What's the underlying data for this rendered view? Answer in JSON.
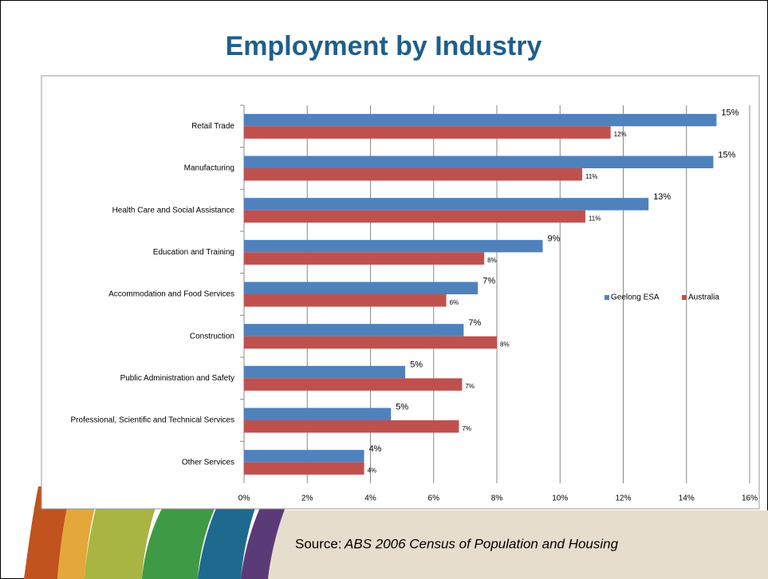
{
  "chart_data": {
    "type": "hbar",
    "title": "Employment by Industry",
    "categories": [
      "Retail Trade",
      "Manufacturing",
      "Health Care and Social Assistance",
      "Education and Training",
      "Accommodation and Food Services",
      "Construction",
      "Public Administration and Safety",
      "Professional, Scientific and Technical Services",
      "Other Services"
    ],
    "series": [
      {
        "name": "Geelong ESA",
        "color": "#4f81bd",
        "values": [
          14.95,
          14.85,
          12.8,
          9.45,
          7.4,
          6.95,
          5.1,
          4.65,
          3.8
        ],
        "value_labels": [
          "15%",
          "15%",
          "13%",
          "9%",
          "7%",
          "7%",
          "5%",
          "5%",
          "4%"
        ]
      },
      {
        "name": "Australia",
        "color": "#c0504d",
        "values": [
          11.6,
          10.7,
          10.8,
          7.6,
          6.4,
          8.0,
          6.9,
          6.8,
          3.8
        ],
        "value_labels": [
          "12%",
          "11%",
          "11%",
          "8%",
          "6%",
          "8%",
          "7%",
          "7%",
          "4%"
        ]
      }
    ],
    "xlim": [
      0,
      16
    ],
    "xticks": [
      {
        "value": 0,
        "label": "0%"
      },
      {
        "value": 2,
        "label": "2%"
      },
      {
        "value": 4,
        "label": "4%"
      },
      {
        "value": 6,
        "label": "6%"
      },
      {
        "value": 8,
        "label": "8%"
      },
      {
        "value": 10,
        "label": "10%"
      },
      {
        "value": 12,
        "label": "12%"
      },
      {
        "value": 14,
        "label": "14%"
      },
      {
        "value": 16,
        "label": "16%"
      }
    ],
    "grid": true,
    "legend": "right"
  },
  "footer": {
    "label": "Source:",
    "text": "ABS 2006 Census of Population and Housing"
  }
}
